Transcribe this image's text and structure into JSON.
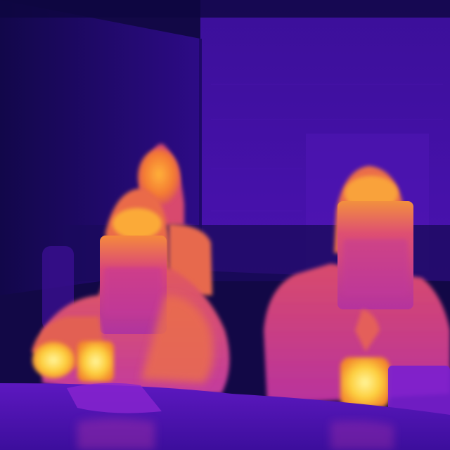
{
  "image": {
    "kind": "thermal-camera-photo",
    "palette": {
      "coldest": "#0c0638",
      "cold": "#3a0d9c",
      "cool": "#6b1cc9",
      "warm": "#c23aa8",
      "warmer": "#ea5a4e",
      "hot": "#f98a2a",
      "hottest": "#fde85a"
    },
    "subjects": [
      {
        "name": "person-back-center",
        "state": "hood-up, face lit"
      },
      {
        "name": "person-front-left",
        "state": "hood-up, holding cold sheet in front of face"
      },
      {
        "name": "person-right",
        "state": "hood-up, holding cold sheet in front of face"
      }
    ],
    "hot_spots": [
      "left-person-left-hand",
      "left-person-right-hand",
      "right-person-hand"
    ]
  }
}
